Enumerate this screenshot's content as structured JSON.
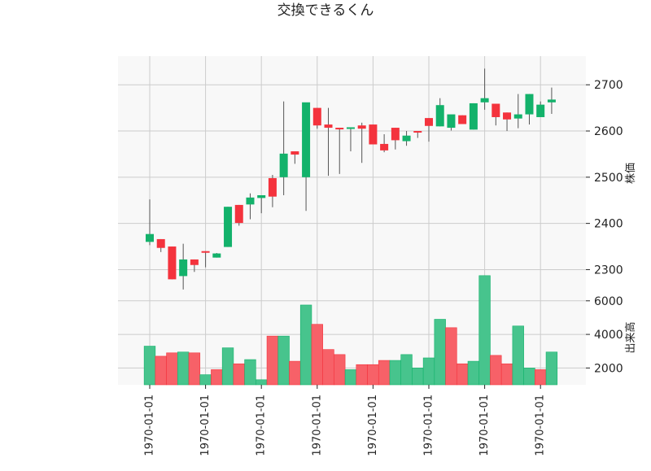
{
  "title": "交換できるくん",
  "colors": {
    "up": "#13b26b",
    "down": "#f4333d",
    "vol_up": "#47c48d",
    "vol_down": "#f76168",
    "wick": "#555555"
  },
  "chart_data": [
    {
      "type": "candlestick",
      "ylabel": "株価",
      "ylim": [
        2255,
        2762
      ],
      "yticks": [
        2300,
        2400,
        2500,
        2600,
        2700
      ],
      "grid": true,
      "candles": [
        {
          "o": 2360,
          "h": 2452,
          "l": 2353,
          "c": 2377,
          "dir": "up"
        },
        {
          "o": 2366,
          "h": 2366,
          "l": 2338,
          "c": 2347,
          "dir": "down"
        },
        {
          "o": 2350,
          "h": 2350,
          "l": 2279,
          "c": 2279,
          "dir": "down"
        },
        {
          "o": 2286,
          "h": 2356,
          "l": 2257,
          "c": 2322,
          "dir": "up"
        },
        {
          "o": 2322,
          "h": 2322,
          "l": 2295,
          "c": 2310,
          "dir": "down"
        },
        {
          "o": 2340,
          "h": 2340,
          "l": 2305,
          "c": 2338,
          "dir": "down"
        },
        {
          "o": 2326,
          "h": 2336,
          "l": 2326,
          "c": 2335,
          "dir": "up"
        },
        {
          "o": 2349,
          "h": 2436,
          "l": 2349,
          "c": 2436,
          "dir": "up"
        },
        {
          "o": 2440,
          "h": 2440,
          "l": 2395,
          "c": 2401,
          "dir": "down"
        },
        {
          "o": 2441,
          "h": 2465,
          "l": 2409,
          "c": 2456,
          "dir": "up"
        },
        {
          "o": 2455,
          "h": 2460,
          "l": 2422,
          "c": 2461,
          "dir": "up"
        },
        {
          "o": 2498,
          "h": 2505,
          "l": 2435,
          "c": 2458,
          "dir": "down"
        },
        {
          "o": 2500,
          "h": 2664,
          "l": 2461,
          "c": 2551,
          "dir": "up"
        },
        {
          "o": 2556,
          "h": 2556,
          "l": 2529,
          "c": 2549,
          "dir": "down"
        },
        {
          "o": 2500,
          "h": 2660,
          "l": 2427,
          "c": 2662,
          "dir": "up"
        },
        {
          "o": 2650,
          "h": 2650,
          "l": 2605,
          "c": 2612,
          "dir": "down"
        },
        {
          "o": 2614,
          "h": 2650,
          "l": 2503,
          "c": 2607,
          "dir": "down"
        },
        {
          "o": 2607,
          "h": 2607,
          "l": 2507,
          "c": 2604,
          "dir": "down"
        },
        {
          "o": 2606,
          "h": 2608,
          "l": 2556,
          "c": 2608,
          "dir": "up"
        },
        {
          "o": 2612,
          "h": 2618,
          "l": 2531,
          "c": 2605,
          "dir": "down"
        },
        {
          "o": 2614,
          "h": 2614,
          "l": 2571,
          "c": 2571,
          "dir": "down"
        },
        {
          "o": 2572,
          "h": 2593,
          "l": 2554,
          "c": 2558,
          "dir": "down"
        },
        {
          "o": 2607,
          "h": 2607,
          "l": 2560,
          "c": 2580,
          "dir": "down"
        },
        {
          "o": 2578,
          "h": 2600,
          "l": 2568,
          "c": 2590,
          "dir": "up"
        },
        {
          "o": 2600,
          "h": 2600,
          "l": 2585,
          "c": 2598,
          "dir": "down"
        },
        {
          "o": 2628,
          "h": 2628,
          "l": 2577,
          "c": 2611,
          "dir": "down"
        },
        {
          "o": 2610,
          "h": 2671,
          "l": 2610,
          "c": 2656,
          "dir": "up"
        },
        {
          "o": 2607,
          "h": 2634,
          "l": 2601,
          "c": 2636,
          "dir": "up"
        },
        {
          "o": 2634,
          "h": 2634,
          "l": 2615,
          "c": 2615,
          "dir": "down"
        },
        {
          "o": 2603,
          "h": 2660,
          "l": 2603,
          "c": 2660,
          "dir": "up"
        },
        {
          "o": 2662,
          "h": 2735,
          "l": 2646,
          "c": 2671,
          "dir": "up"
        },
        {
          "o": 2659,
          "h": 2659,
          "l": 2612,
          "c": 2630,
          "dir": "down"
        },
        {
          "o": 2640,
          "h": 2640,
          "l": 2600,
          "c": 2625,
          "dir": "down"
        },
        {
          "o": 2627,
          "h": 2680,
          "l": 2606,
          "c": 2636,
          "dir": "up"
        },
        {
          "o": 2636,
          "h": 2680,
          "l": 2614,
          "c": 2680,
          "dir": "up"
        },
        {
          "o": 2630,
          "h": 2664,
          "l": 2630,
          "c": 2657,
          "dir": "up"
        },
        {
          "o": 2662,
          "h": 2694,
          "l": 2637,
          "c": 2668,
          "dir": "up"
        }
      ]
    },
    {
      "type": "bar",
      "ylabel": "出来高",
      "ylim": [
        1000,
        6620
      ],
      "yticks": [
        2000,
        4000,
        6000
      ],
      "grid": true,
      "volumes": [
        3300,
        2700,
        2900,
        2950,
        2900,
        1600,
        1900,
        3200,
        2250,
        2500,
        1300,
        3900,
        3900,
        2400,
        5750,
        4600,
        3100,
        2800,
        1900,
        2200,
        2200,
        2450,
        2450,
        2800,
        2000,
        2600,
        4900,
        4400,
        2250,
        2400,
        7500,
        2750,
        2250,
        4500,
        2000,
        1900,
        2950
      ],
      "volume_dir": [
        "up",
        "down",
        "down",
        "up",
        "down",
        "up",
        "down",
        "up",
        "down",
        "up",
        "up",
        "down",
        "up",
        "down",
        "up",
        "down",
        "down",
        "down",
        "up",
        "down",
        "down",
        "down",
        "up",
        "up",
        "up",
        "up",
        "up",
        "down",
        "down",
        "up",
        "up",
        "down",
        "down",
        "up",
        "up",
        "down",
        "up"
      ]
    }
  ],
  "x_tick_labels": [
    "1970-01-01",
    "1970-01-01",
    "1970-01-01",
    "1970-01-01",
    "1970-01-01",
    "1970-01-01",
    "1970-01-01",
    "1970-01-01"
  ]
}
